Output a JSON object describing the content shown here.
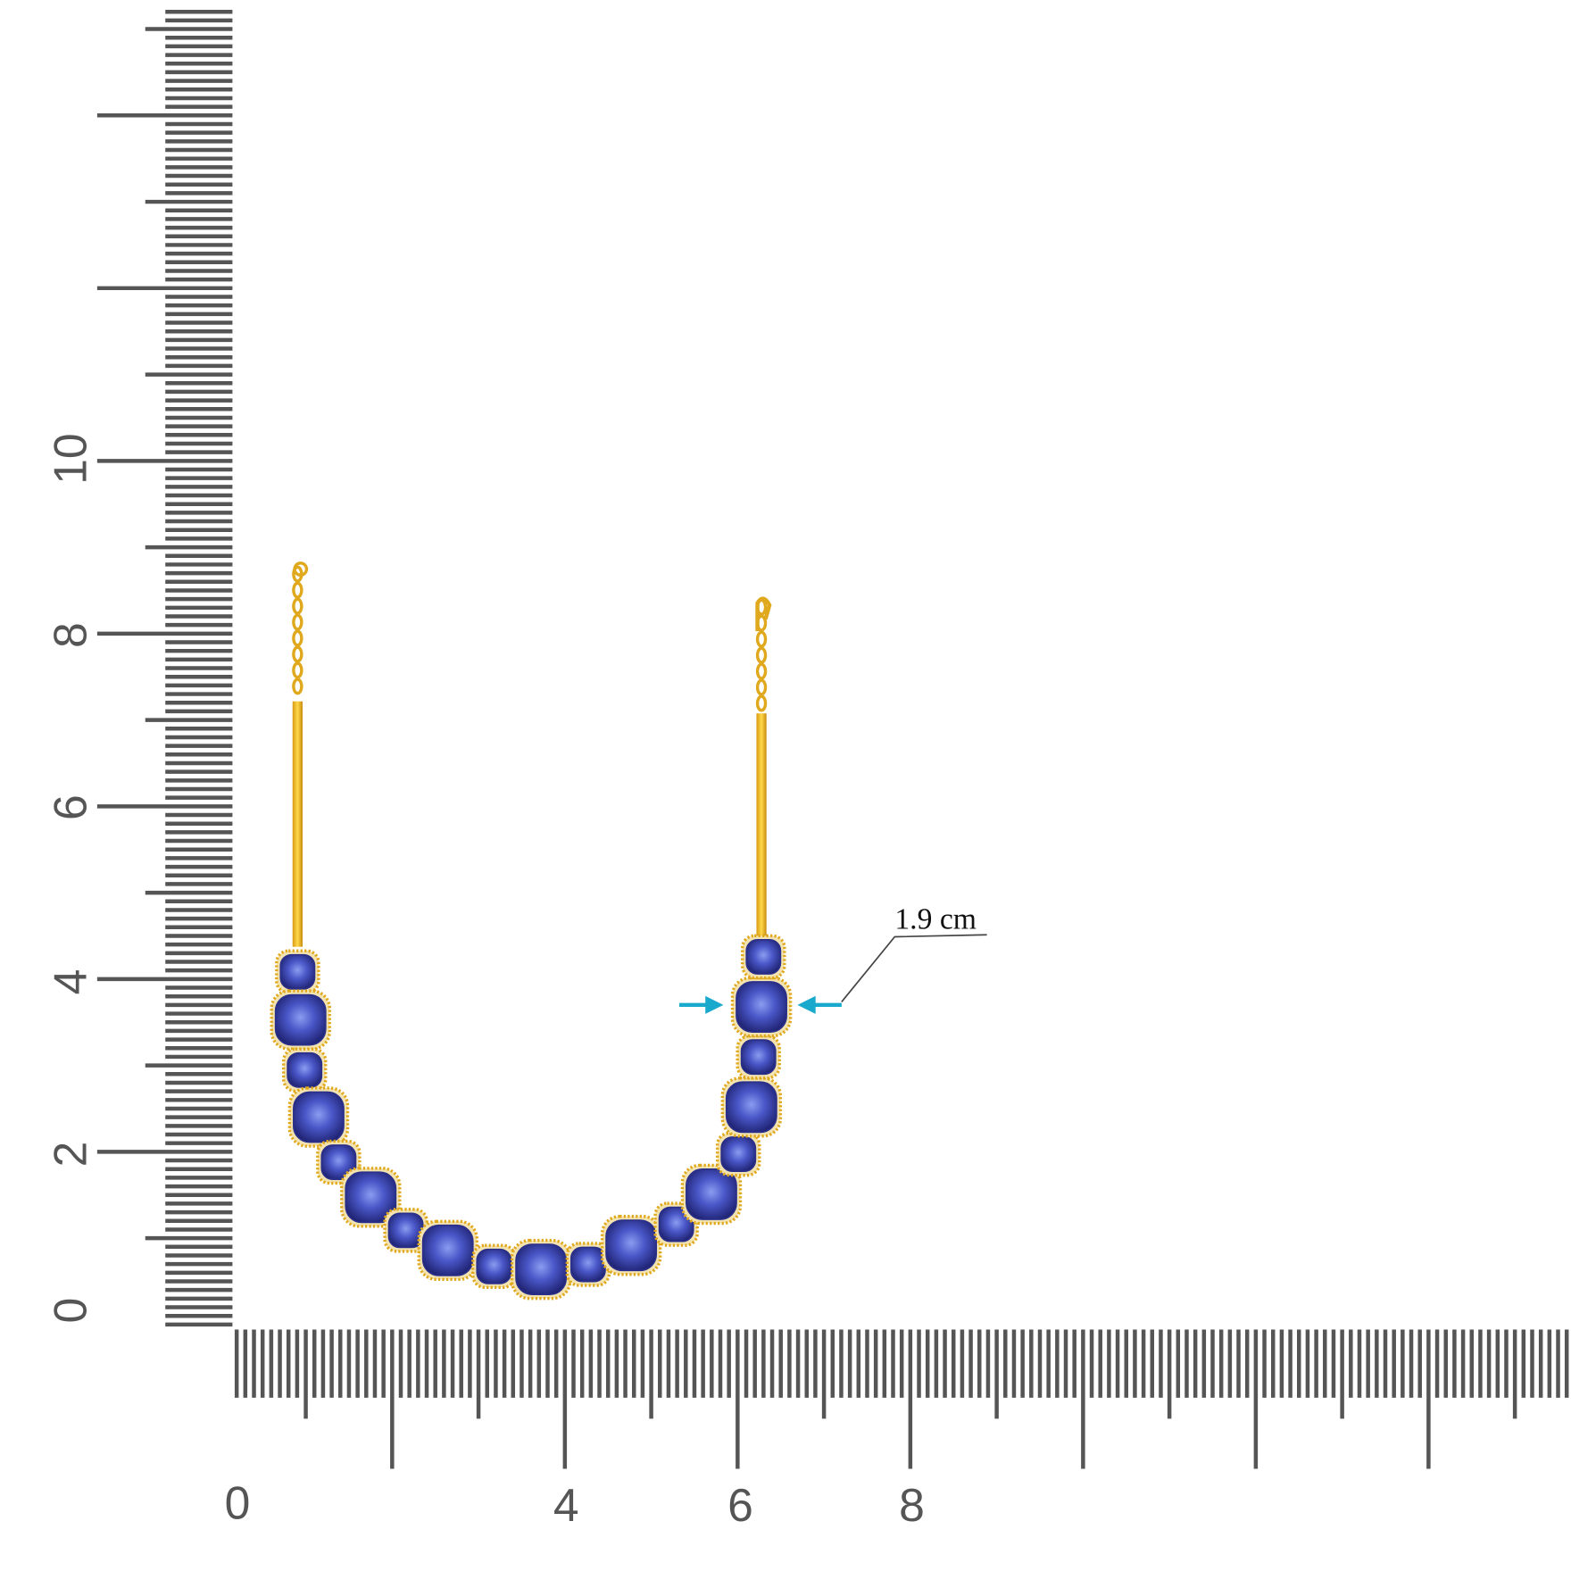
{
  "vertical_ruler": {
    "labels": [
      "0",
      "2",
      "4",
      "6",
      "8",
      "10"
    ]
  },
  "horizontal_ruler": {
    "labels": [
      "0",
      "4",
      "6",
      "8"
    ]
  },
  "annotation": {
    "text": "1.9 cm"
  }
}
